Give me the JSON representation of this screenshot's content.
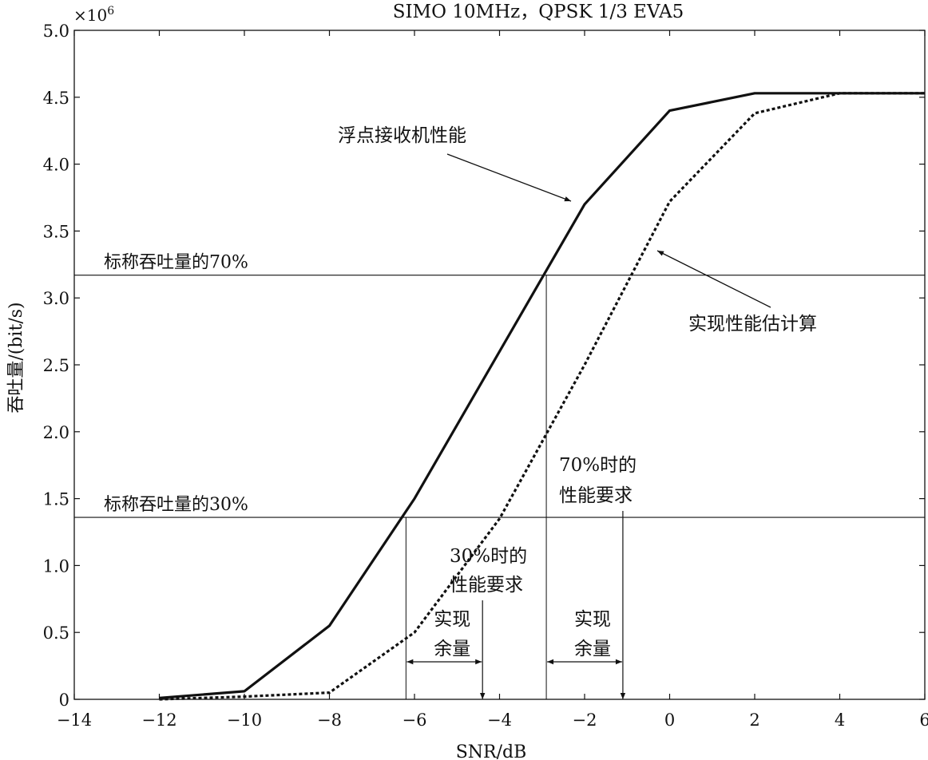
{
  "chart_data": {
    "type": "line",
    "title": "SIMO 10MHz，QPSK 1/3 EVA5",
    "xlabel": "SNR/dB",
    "ylabel": "吞吐量/(bit/s)",
    "y_multiplier": "×10",
    "y_multiplier_exp": "6",
    "xlim": [
      -14,
      6
    ],
    "ylim": [
      0,
      5.0
    ],
    "xticks": [
      -14,
      -12,
      -10,
      -8,
      -6,
      -4,
      -2,
      0,
      2,
      4,
      6
    ],
    "xtick_labels": [
      "−14",
      "−12",
      "−10",
      "−8",
      "−6",
      "−4",
      "−2",
      "0",
      "2",
      "4",
      "6"
    ],
    "yticks": [
      0,
      0.5,
      1.0,
      1.5,
      2.0,
      2.5,
      3.0,
      3.5,
      4.0,
      4.5,
      5.0
    ],
    "ytick_labels": [
      "0",
      "0.5",
      "1.0",
      "1.5",
      "2.0",
      "2.5",
      "3.0",
      "3.5",
      "4.0",
      "4.5",
      "5.0"
    ],
    "grid": false,
    "series": [
      {
        "name": "浮点接收机性能",
        "style": "solid",
        "color": "#111111",
        "x": [
          -12,
          -10,
          -8,
          -6,
          -2,
          0,
          2,
          6
        ],
        "y": [
          0.01,
          0.06,
          0.55,
          1.5,
          3.7,
          4.4,
          4.53,
          4.53
        ]
      },
      {
        "name": "实现性能估计算",
        "style": "dotted",
        "color": "#111111",
        "x": [
          -12,
          -10,
          -8,
          -6,
          -4,
          -2,
          0,
          2,
          4,
          6
        ],
        "y": [
          0.0,
          0.02,
          0.05,
          0.5,
          1.35,
          2.5,
          3.72,
          4.38,
          4.53,
          4.53
        ]
      }
    ],
    "reference_lines": [
      {
        "label": "标称吞吐量的70%",
        "y": 3.17
      },
      {
        "label": "标称吞吐量的30%",
        "y": 1.36
      }
    ],
    "annotations": {
      "requirement_30": {
        "lines": [
          "30%时的",
          "性能要求"
        ],
        "x": -4.4
      },
      "requirement_70": {
        "lines": [
          "70%时的",
          "性能要求"
        ],
        "x": -1.1
      },
      "margin_left": {
        "lines": [
          "实现",
          "余量"
        ],
        "from": -6.2,
        "to": -4.4
      },
      "margin_right": {
        "lines": [
          "实现",
          "余量"
        ],
        "from": -2.9,
        "to": -1.1
      },
      "crossing_70_x": -2.9,
      "crossing_30_x": -6.2
    }
  }
}
